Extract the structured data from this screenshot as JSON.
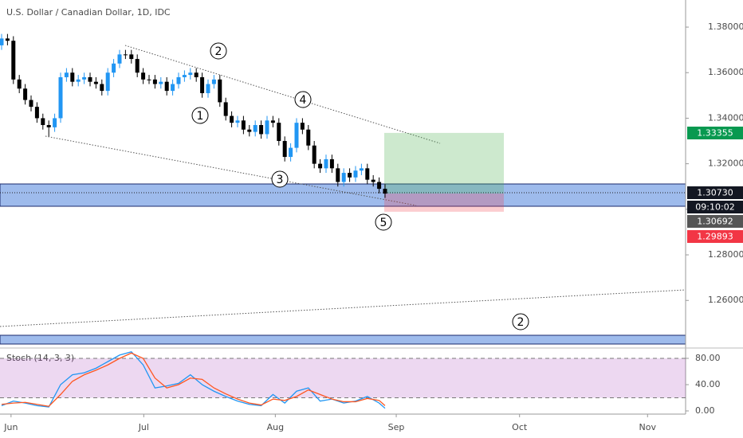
{
  "chart_data": [
    {
      "type": "candlestick",
      "title": "U.S. Dollar / Canadian Dollar, 1D, IDC",
      "categories": [
        null,
        null,
        null,
        null,
        null,
        null,
        null,
        null,
        null,
        null,
        null,
        null,
        null,
        null,
        null,
        null,
        null,
        null,
        null,
        null,
        null,
        null,
        null,
        null,
        null,
        null,
        null,
        null,
        null,
        null,
        null,
        null,
        null,
        null,
        null,
        null,
        null,
        null,
        null,
        null,
        null,
        null,
        null,
        null,
        null,
        null,
        null,
        null,
        null,
        null,
        null,
        null,
        null,
        null,
        null,
        null,
        null,
        null,
        null,
        null,
        null,
        null,
        null,
        null,
        null,
        null
      ],
      "open": [
        1.372,
        1.375,
        1.374,
        1.357,
        1.353,
        1.348,
        1.345,
        1.34,
        1.337,
        1.336,
        1.34,
        1.358,
        1.36,
        1.356,
        1.357,
        1.358,
        1.356,
        1.355,
        1.352,
        1.36,
        1.364,
        1.368,
        1.368,
        1.366,
        1.36,
        1.357,
        1.357,
        1.355,
        1.356,
        1.352,
        1.355,
        1.358,
        1.359,
        1.36,
        1.358,
        1.351,
        1.355,
        1.357,
        1.347,
        1.341,
        1.338,
        1.339,
        1.335,
        1.334,
        1.337,
        1.333,
        1.339,
        1.338,
        1.33,
        1.323,
        1.327,
        1.338,
        1.335,
        1.328,
        1.32,
        1.318,
        1.322,
        1.318,
        1.312,
        1.316,
        1.314,
        1.317,
        1.318,
        1.313,
        1.312,
        1.309
      ],
      "high": [
        1.377,
        1.377,
        1.376,
        1.359,
        1.355,
        1.35,
        1.347,
        1.342,
        1.339,
        1.342,
        1.36,
        1.362,
        1.362,
        1.359,
        1.36,
        1.36,
        1.358,
        1.357,
        1.362,
        1.366,
        1.37,
        1.37,
        1.37,
        1.368,
        1.362,
        1.359,
        1.359,
        1.358,
        1.358,
        1.357,
        1.36,
        1.361,
        1.362,
        1.362,
        1.36,
        1.357,
        1.359,
        1.359,
        1.349,
        1.343,
        1.341,
        1.341,
        1.337,
        1.339,
        1.339,
        1.341,
        1.341,
        1.34,
        1.332,
        1.329,
        1.34,
        1.34,
        1.337,
        1.33,
        1.322,
        1.324,
        1.324,
        1.32,
        1.318,
        1.318,
        1.319,
        1.32,
        1.32,
        1.315,
        1.314,
        1.311
      ],
      "low": [
        1.37,
        1.372,
        1.355,
        1.351,
        1.346,
        1.343,
        1.338,
        1.335,
        1.332,
        1.334,
        1.338,
        1.356,
        1.354,
        1.354,
        1.355,
        1.354,
        1.353,
        1.35,
        1.35,
        1.358,
        1.362,
        1.366,
        1.364,
        1.358,
        1.355,
        1.355,
        1.353,
        1.353,
        1.35,
        1.35,
        1.353,
        1.356,
        1.357,
        1.356,
        1.349,
        1.349,
        1.353,
        1.345,
        1.339,
        1.336,
        1.336,
        1.333,
        1.332,
        1.332,
        1.331,
        1.331,
        1.336,
        1.328,
        1.321,
        1.321,
        1.325,
        1.333,
        1.326,
        1.318,
        1.316,
        1.316,
        1.316,
        1.31,
        1.31,
        1.312,
        1.312,
        1.315,
        1.311,
        1.31,
        1.307,
        1.305
      ],
      "close": [
        1.375,
        1.374,
        1.357,
        1.353,
        1.348,
        1.345,
        1.34,
        1.337,
        1.336,
        1.34,
        1.358,
        1.36,
        1.356,
        1.357,
        1.358,
        1.356,
        1.355,
        1.352,
        1.36,
        1.364,
        1.368,
        1.368,
        1.366,
        1.36,
        1.357,
        1.357,
        1.355,
        1.356,
        1.352,
        1.355,
        1.358,
        1.359,
        1.36,
        1.358,
        1.351,
        1.355,
        1.357,
        1.347,
        1.341,
        1.338,
        1.339,
        1.335,
        1.334,
        1.337,
        1.333,
        1.339,
        1.338,
        1.33,
        1.323,
        1.327,
        1.338,
        1.335,
        1.328,
        1.32,
        1.318,
        1.322,
        1.318,
        1.312,
        1.316,
        1.314,
        1.317,
        1.318,
        1.313,
        1.312,
        1.309,
        1.3069
      ],
      "up_color": "#2196f3",
      "down_color": "#000000",
      "xlim": [
        -0.27,
        115.95
      ],
      "xticks": [
        {
          "value": 1.6,
          "label": "Jun"
        },
        {
          "value": 24.1,
          "label": "Jul"
        },
        {
          "value": 46.4,
          "label": "Aug"
        },
        {
          "value": 66.9,
          "label": "Sep"
        },
        {
          "value": 87.8,
          "label": "Oct"
        },
        {
          "value": 109.5,
          "label": "Nov"
        }
      ],
      "ylim": [
        1.2391,
        1.3919
      ],
      "yticks": [
        {
          "value": 1.26,
          "label": "1.26000"
        },
        {
          "value": 1.28,
          "label": "1.28000"
        },
        {
          "value": 1.3,
          "label": "1.30000"
        },
        {
          "value": 1.32,
          "label": "1.32000"
        },
        {
          "value": 1.34,
          "label": "1.34000"
        },
        {
          "value": 1.36,
          "label": "1.36000"
        },
        {
          "value": 1.38,
          "label": "1.38000"
        }
      ],
      "price_labels": [
        {
          "value": 1.33355,
          "label": "1.33355",
          "color": "#089950"
        },
        {
          "value": 1.3073,
          "label": "1.30730",
          "color": "#131722"
        },
        {
          "label": "09:10:02",
          "color": "#131722"
        },
        {
          "value": 1.30692,
          "label": "1.30692",
          "color": "#555555"
        },
        {
          "value": 1.29893,
          "label": "1.29893",
          "color": "#f23645"
        }
      ],
      "annotations": [
        "2",
        "1",
        "4",
        "3",
        "5",
        "2"
      ]
    },
    {
      "type": "line",
      "title": "Stoch (14, 3, 3)",
      "x": [
        0,
        2,
        4,
        6,
        8,
        10,
        12,
        14,
        16,
        18,
        20,
        22,
        24,
        26,
        28,
        30,
        32,
        34,
        36,
        38,
        40,
        42,
        44,
        46,
        48,
        50,
        52,
        54,
        56,
        58,
        60,
        62,
        64,
        65
      ],
      "series": [
        {
          "name": "%K",
          "color": "#2196f3",
          "values": [
            8,
            15,
            12,
            8,
            6,
            40,
            55,
            58,
            65,
            75,
            85,
            90,
            70,
            35,
            38,
            42,
            55,
            40,
            30,
            22,
            15,
            10,
            8,
            25,
            12,
            30,
            35,
            15,
            18,
            12,
            15,
            22,
            12,
            4
          ]
        },
        {
          "name": "%D",
          "color": "#ff5722",
          "values": [
            10,
            12,
            13,
            10,
            7,
            25,
            45,
            55,
            62,
            70,
            80,
            88,
            80,
            50,
            35,
            40,
            50,
            48,
            35,
            26,
            18,
            12,
            9,
            18,
            16,
            22,
            32,
            25,
            18,
            14,
            14,
            19,
            16,
            8
          ]
        }
      ],
      "xlim": [
        -0.27,
        115.95
      ],
      "ylim": [
        -4.85,
        92.12
      ],
      "yticks": [
        {
          "value": 0,
          "label": "0.00"
        },
        {
          "value": 40,
          "label": "40.00"
        },
        {
          "value": 80,
          "label": "80.00"
        }
      ],
      "bands": [
        20,
        80
      ]
    }
  ]
}
